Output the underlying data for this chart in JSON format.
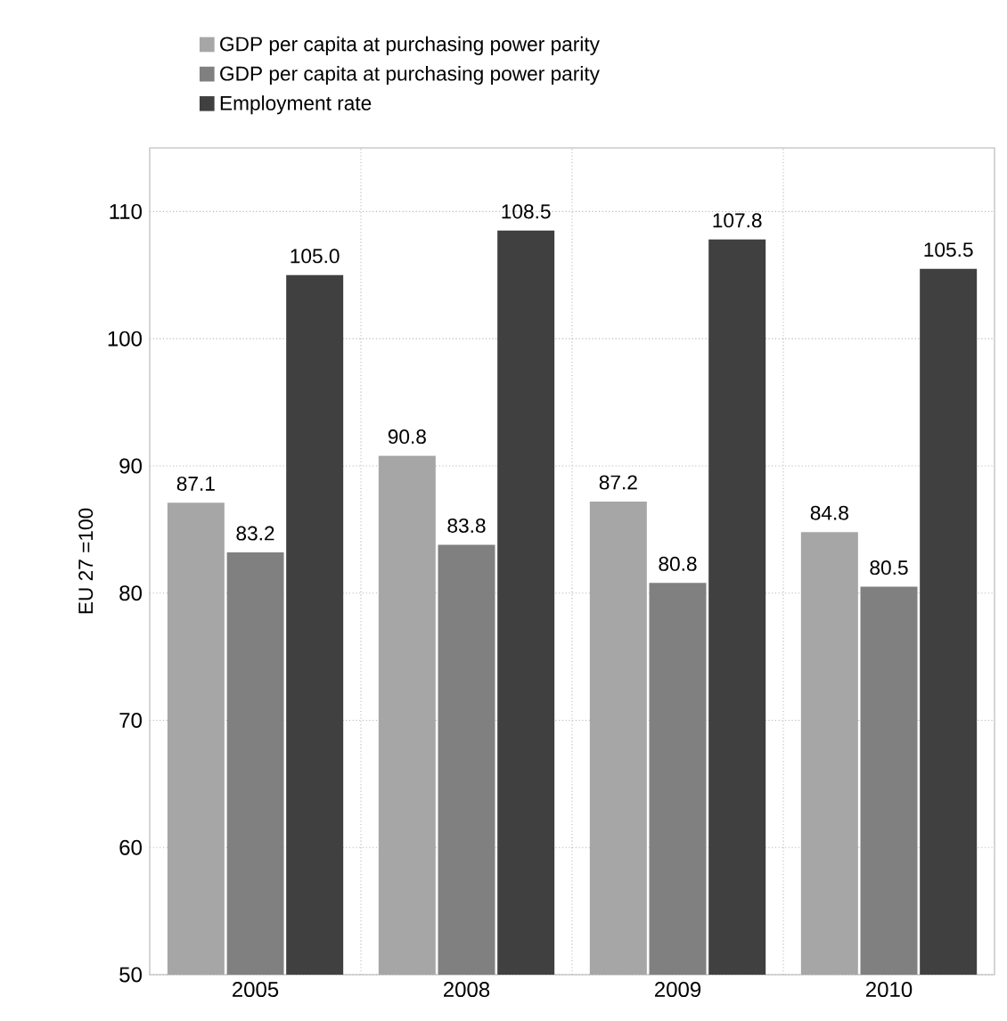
{
  "chart_data": {
    "type": "bar",
    "ylabel": "EU 27 =100",
    "categories": [
      "2005",
      "2008",
      "2009",
      "2010"
    ],
    "series": [
      {
        "name": "GDP per capita at purchasing power parity",
        "color": "#a6a6a6",
        "values": [
          87.1,
          90.8,
          87.2,
          84.8
        ],
        "value_labels": [
          "87.1",
          "90.8",
          "87.2",
          "84.8"
        ]
      },
      {
        "name": "GDP per capita at purchasing power parity",
        "color": "#808080",
        "values": [
          83.2,
          83.8,
          80.8,
          80.5
        ],
        "value_labels": [
          "83.2",
          "83.8",
          "80.8",
          "80.5"
        ]
      },
      {
        "name": "Employment rate",
        "color": "#404040",
        "values": [
          105.0,
          108.5,
          107.8,
          105.5
        ],
        "value_labels": [
          "105.0",
          "108.5",
          "107.8",
          "105.5"
        ]
      }
    ],
    "ylim": [
      50,
      115
    ],
    "yticks": [
      50,
      60,
      70,
      80,
      90,
      100,
      110
    ],
    "grid": true,
    "legend": "top"
  }
}
